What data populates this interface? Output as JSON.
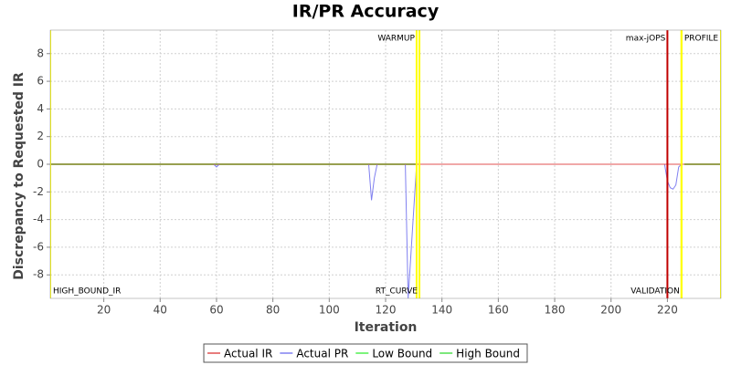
{
  "chart_data": {
    "type": "line",
    "title": "IR/PR Accuracy",
    "xlabel": "Iteration",
    "ylabel": "Discrepancy to Requested IR",
    "xlim": [
      1,
      239
    ],
    "ylim": [
      -9.7,
      9.7
    ],
    "xticks": [
      20,
      40,
      60,
      80,
      100,
      120,
      140,
      160,
      180,
      200,
      220
    ],
    "yticks": [
      -8,
      -6,
      -4,
      -2,
      0,
      2,
      4,
      6,
      8
    ],
    "grid": true,
    "legend": "bottom",
    "series": [
      {
        "name": "Actual IR",
        "color": "#e05050",
        "x": [
          1,
          239
        ],
        "values": [
          0,
          0
        ]
      },
      {
        "name": "Actual PR",
        "color": "#8080f0",
        "x": [
          1,
          59,
          60,
          61,
          114,
          115,
          116,
          117,
          127,
          128,
          131,
          132,
          219,
          220,
          221,
          222,
          223,
          224,
          225,
          239
        ],
        "values": [
          0,
          0,
          -0.2,
          0,
          0,
          -2.6,
          -1,
          0,
          0,
          -9.7,
          0,
          0,
          0,
          -1.2,
          -1.7,
          -1.8,
          -1.5,
          -0.2,
          0,
          0
        ]
      },
      {
        "name": "Low Bound",
        "color": "#50f050",
        "x": [
          1,
          131,
          132,
          226,
          239
        ],
        "values": [
          0,
          0,
          null,
          0,
          0
        ]
      },
      {
        "name": "High Bound",
        "color": "#50e050",
        "x": [
          1,
          131,
          132,
          226,
          239
        ],
        "values": [
          0,
          0,
          null,
          0,
          0
        ]
      }
    ],
    "markers": [
      {
        "x": 1,
        "label": "HIGH_BOUND_IR",
        "color": "#ffff00",
        "position": "bottom",
        "anchor": "start"
      },
      {
        "x": 131,
        "label": "WARMUP",
        "color": "#ffff00",
        "position": "top",
        "anchor": "end"
      },
      {
        "x": 132,
        "label": "RT_CURVE",
        "color": "#ffff00",
        "position": "bottom",
        "anchor": "end"
      },
      {
        "x": 220,
        "label": "max-jOPS",
        "color": "#c00000",
        "position": "top",
        "anchor": "end"
      },
      {
        "x": 225,
        "label": "VALIDATION",
        "color": "#ffff00",
        "position": "bottom",
        "anchor": "end"
      },
      {
        "x": 225,
        "label": "PROFILE",
        "color": "#ffff00",
        "position": "top",
        "anchor": "start"
      },
      {
        "x": 239,
        "color": "#ffff00"
      }
    ]
  }
}
